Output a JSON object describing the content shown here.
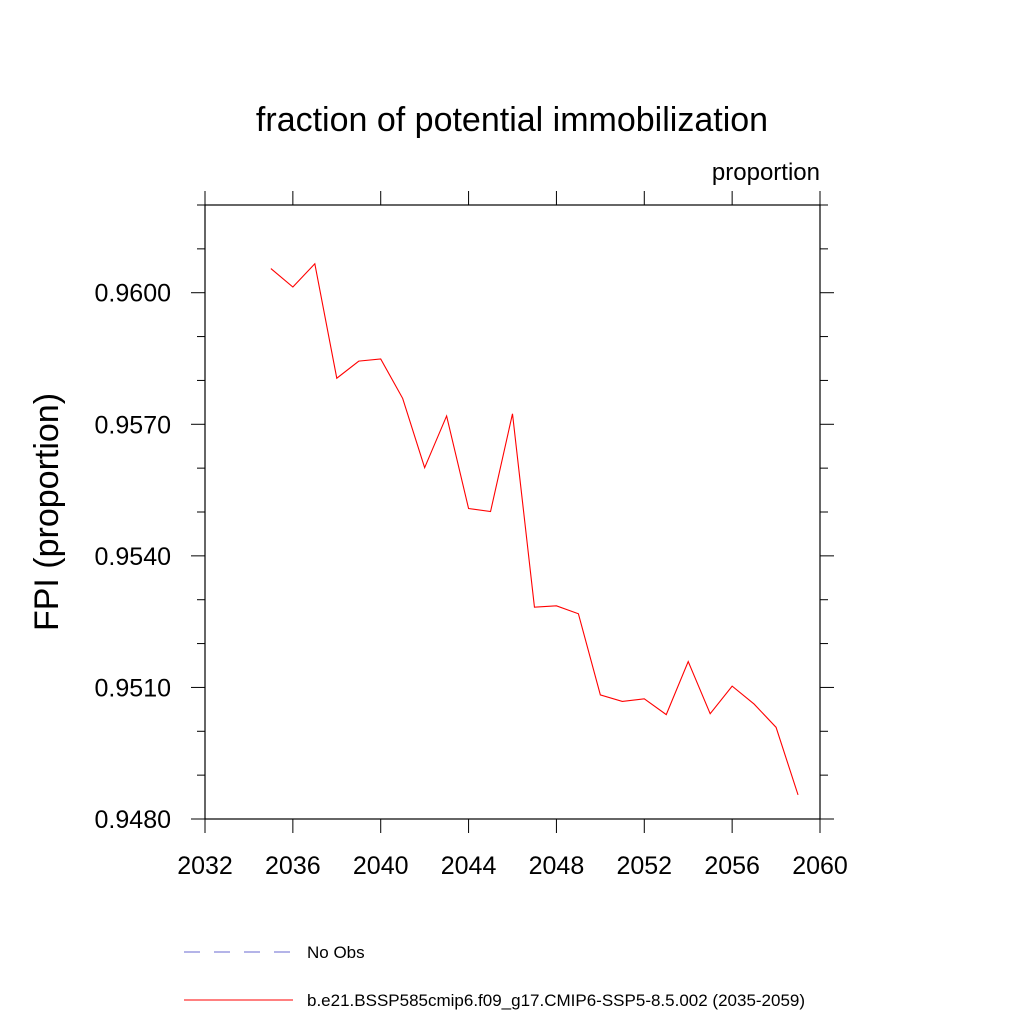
{
  "chart_data": {
    "type": "line",
    "title": "fraction of potential immobilization",
    "subtitle": "proportion",
    "ylabel": "FPI  (proportion)",
    "xlabel": "",
    "xlim": [
      2032,
      2060
    ],
    "ylim": [
      0.948,
      0.962
    ],
    "x_ticks": [
      2032,
      2036,
      2040,
      2044,
      2048,
      2052,
      2056,
      2060
    ],
    "x_tick_labels": [
      "2032",
      "2036",
      "2040",
      "2044",
      "2048",
      "2052",
      "2056",
      "2060"
    ],
    "y_ticks": [
      0.948,
      0.951,
      0.954,
      0.957,
      0.96
    ],
    "y_tick_labels": [
      "0.9480",
      "0.9510",
      "0.9540",
      "0.9570",
      "0.9600"
    ],
    "grid": false,
    "legend_position": "bottom",
    "series": [
      {
        "name": "No Obs",
        "color": "#6a6ad0",
        "style": "dashed",
        "x": [],
        "y": []
      },
      {
        "name": "b.e21.BSSP585cmip6.f09_g17.CMIP6-SSP5-8.5.002 (2035-2059)",
        "color": "#ff0000",
        "style": "solid",
        "x": [
          2035,
          2036,
          2037,
          2038,
          2039,
          2040,
          2041,
          2042,
          2043,
          2044,
          2045,
          2046,
          2047,
          2048,
          2049,
          2050,
          2051,
          2052,
          2053,
          2054,
          2055,
          2056,
          2057,
          2058,
          2059
        ],
        "y": [
          0.96055,
          0.96013,
          0.96066,
          0.95805,
          0.95844,
          0.95849,
          0.95759,
          0.95601,
          0.95719,
          0.95508,
          0.95501,
          0.95724,
          0.95283,
          0.95286,
          0.95268,
          0.95083,
          0.95068,
          0.95074,
          0.95038,
          0.95159,
          0.9504,
          0.95103,
          0.95062,
          0.95009,
          0.94855
        ]
      }
    ]
  }
}
